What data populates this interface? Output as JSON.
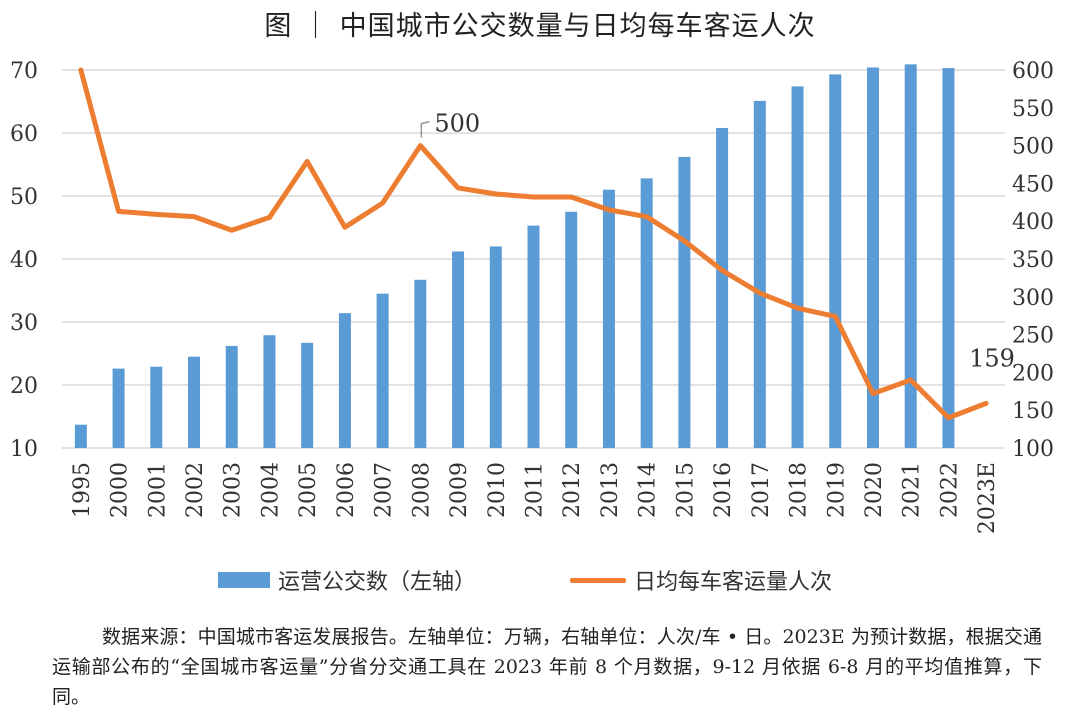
{
  "title": "图 ｜ 中国城市公交数量与日均每车客运人次",
  "chart_data": {
    "type": "bar",
    "categories": [
      "1995",
      "2000",
      "2001",
      "2002",
      "2003",
      "2004",
      "2005",
      "2006",
      "2007",
      "2008",
      "2009",
      "2010",
      "2011",
      "2012",
      "2013",
      "2014",
      "2015",
      "2016",
      "2017",
      "2018",
      "2019",
      "2020",
      "2021",
      "2022",
      "2023E"
    ],
    "series": [
      {
        "name": "运营公交数（左轴）",
        "type": "bar",
        "axis": "left",
        "color": "#5b9bd5",
        "values": [
          13.7,
          22.6,
          22.9,
          24.5,
          26.2,
          27.9,
          26.7,
          31.4,
          34.5,
          36.7,
          41.2,
          42.0,
          45.3,
          47.5,
          51.0,
          52.8,
          56.2,
          60.8,
          65.1,
          67.4,
          69.3,
          70.4,
          70.9,
          70.3,
          null
        ]
      },
      {
        "name": "日均每车客运量人次",
        "type": "line",
        "axis": "right",
        "color": "#ed7d31",
        "values": [
          600,
          413,
          409,
          406,
          388,
          405,
          479,
          392,
          424,
          500,
          444,
          436,
          432,
          432,
          415,
          406,
          374,
          335,
          305,
          285,
          274,
          172,
          190,
          140,
          159
        ]
      }
    ],
    "y_left": {
      "min": 10,
      "max": 70,
      "ticks": [
        10,
        20,
        30,
        40,
        50,
        60,
        70
      ]
    },
    "y_right": {
      "min": 100,
      "max": 600,
      "ticks": [
        100,
        150,
        200,
        250,
        300,
        350,
        400,
        450,
        500,
        550,
        600
      ]
    },
    "annotations": [
      {
        "text": "500",
        "category": "2008"
      },
      {
        "text": "159",
        "category": "2023E"
      }
    ],
    "legend_position": "bottom",
    "grid": true
  },
  "note": "数据来源：中国城市客运发展报告。左轴单位：万辆，右轴单位：人次/车 • 日。2023E 为预计数据，根据交通运输部公布的“全国城市客运量”分省分交通工具在 2023 年前 8 个月数据，9-12 月依据 6-8 月的平均值推算，下同。"
}
